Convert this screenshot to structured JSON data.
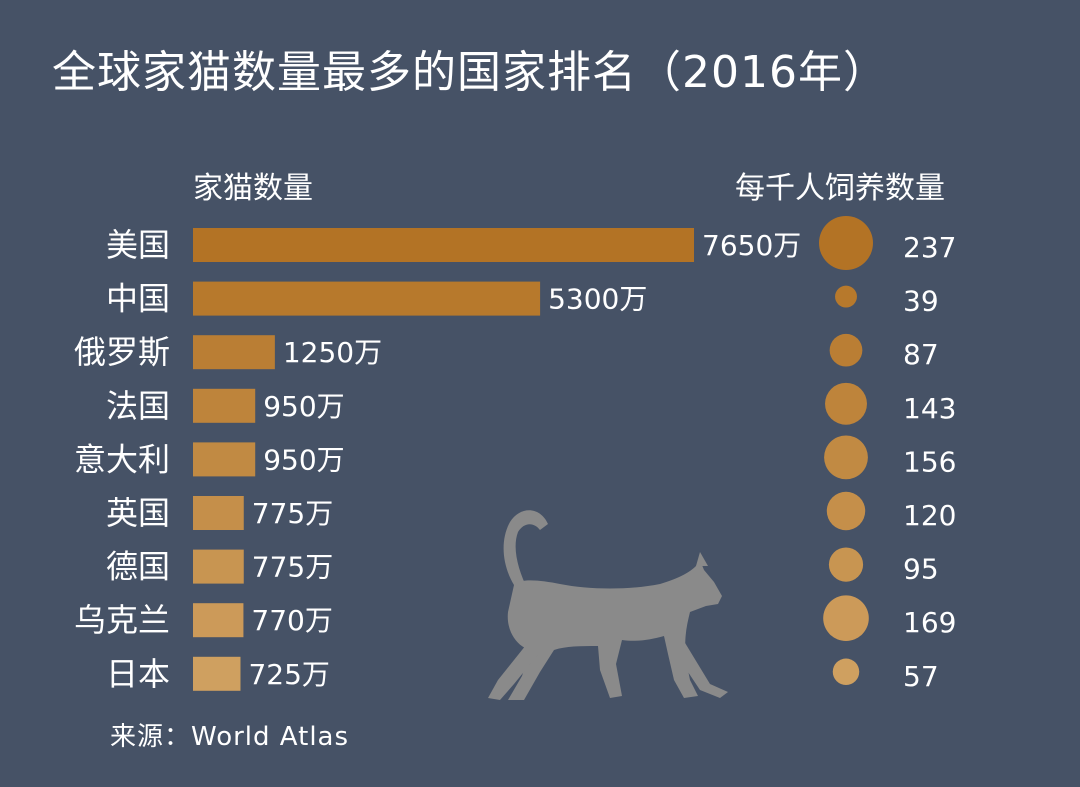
{
  "title": "全球家猫数量最多的国家排名（2016年）",
  "count_header": "家猫数量",
  "per_header": "每千人饲养数量",
  "source_prefix": "来源：",
  "source_name": "World Atlas",
  "colors": {
    "background": "#465266",
    "bar_dark": "#b37325",
    "bar_light": "#cfa060",
    "text": "#ffffff",
    "cat": "#8a8a8a"
  },
  "decor": {
    "cat_icon": "walking-cat-silhouette"
  },
  "chart_data": {
    "type": "bar",
    "categories": [
      "美国",
      "中国",
      "俄罗斯",
      "法国",
      "意大利",
      "英国",
      "德国",
      "乌克兰",
      "日本"
    ],
    "series": [
      {
        "name": "家猫数量",
        "unit": "万",
        "values": [
          7650,
          5300,
          1250,
          950,
          950,
          775,
          775,
          770,
          725
        ]
      },
      {
        "name": "每千人饲养数量",
        "values": [
          237,
          39,
          87,
          143,
          156,
          120,
          95,
          169,
          57
        ]
      }
    ],
    "value_labels": [
      "7650万",
      "5300万",
      "1250万",
      "950万",
      "950万",
      "775万",
      "775万",
      "770万",
      "725万"
    ],
    "per_labels": [
      "237",
      "39",
      "87",
      "143",
      "156",
      "120",
      "95",
      "169",
      "57"
    ],
    "grid": false,
    "legend": "none"
  }
}
